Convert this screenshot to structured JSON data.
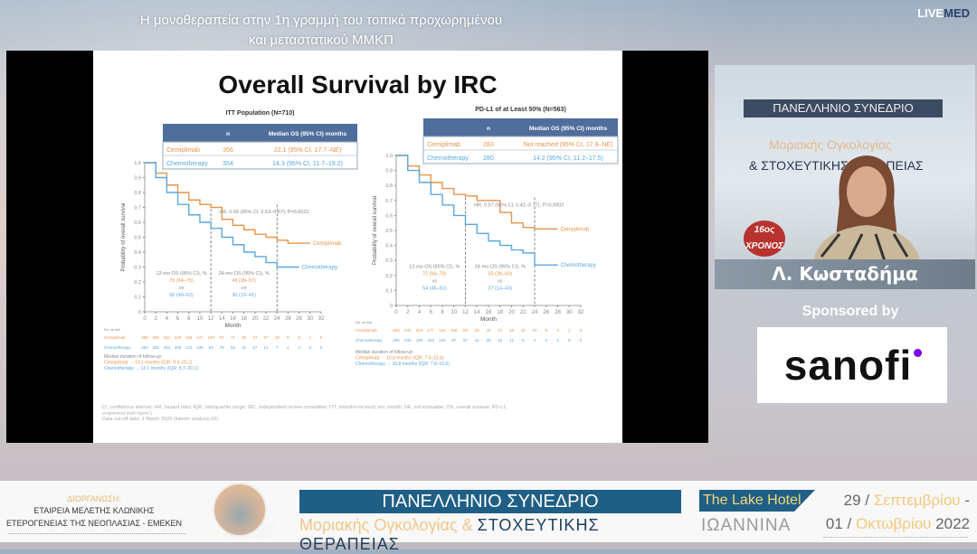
{
  "header": {
    "title_line1": "Η μονοθεραπεία στην 1η γραμμή του τοπικά προχωρημένου",
    "title_line2": "και μεταστατικού ΜΜΚΠ",
    "brand_live": "LIVE",
    "brand_med": "MED"
  },
  "slide": {
    "title": "Overall Survival by IRC",
    "footnote": [
      "CI, confidence interval; HR, hazard ratio; IQR, interquartile range; IRC, independent review committee; ITT, intention-to-treat; mo, month; NE, not evaluable; OS, overall survival; PD-L1,",
      "programmed death-ligand 1.",
      "Data cut-off date: 1 March 2020 (interim analysis #2)."
    ]
  },
  "chart_data": [
    {
      "type": "line",
      "title": "ITT Population (N=710)",
      "xlabel": "Month",
      "ylabel": "Probability of overall survival",
      "xlim": [
        0,
        32
      ],
      "ylim": [
        0,
        1
      ],
      "xticks": [
        0,
        2,
        4,
        6,
        8,
        10,
        12,
        14,
        16,
        18,
        20,
        22,
        24,
        26,
        28,
        30,
        32
      ],
      "yticks": [
        "0",
        "0.1",
        "0.2",
        "0.3",
        "0.4",
        "0.5",
        "0.6",
        "0.7",
        "0.8",
        "0.9",
        "1.0"
      ],
      "table": {
        "headers": [
          "",
          "n",
          "Median OS (95% CI) months"
        ],
        "rows": [
          [
            "Cemiplimab",
            "356",
            "22.1 (95% CI, 17.7–NE)"
          ],
          [
            "Chemotherapy",
            "354",
            "14.3 (95% CI, 11.7–19.2)"
          ]
        ]
      },
      "hr": "HR, 0.68 (95% CI, 0.53–0.87); P=0.0022",
      "landmarks": [
        {
          "title": "12-mo OS (95% CI), %",
          "a": "70 (64–75)",
          "vs": "vs",
          "b": "56 (49–62)",
          "month": 12
        },
        {
          "title": "24-mo OS (95% CI), %",
          "a": "49 (39–57)",
          "vs": "vs",
          "b": "30 (19–41)",
          "month": 24
        }
      ],
      "series": [
        {
          "name": "Cemiplimab",
          "color": "#e8944a",
          "x": [
            0,
            2,
            4,
            6,
            8,
            10,
            12,
            14,
            16,
            18,
            20,
            22,
            24,
            26,
            28,
            30
          ],
          "y": [
            1,
            0.93,
            0.85,
            0.8,
            0.75,
            0.72,
            0.7,
            0.62,
            0.58,
            0.55,
            0.52,
            0.5,
            0.48,
            0.46,
            0.46,
            0.46
          ]
        },
        {
          "name": "Chemotherapy",
          "color": "#5aa8e0",
          "x": [
            0,
            2,
            4,
            6,
            8,
            10,
            12,
            14,
            16,
            18,
            20,
            22,
            24,
            26,
            28
          ],
          "y": [
            1,
            0.9,
            0.8,
            0.72,
            0.65,
            0.6,
            0.56,
            0.5,
            0.45,
            0.4,
            0.37,
            0.33,
            0.3,
            0.3,
            0.3
          ]
        }
      ],
      "at_risk": {
        "label": "No. at risk",
        "rows": [
          {
            "name": "Cemiplimab",
            "values": [
              "356",
              "304",
              "264",
              "223",
              "156",
              "147",
              "120",
              "97",
              "71",
              "48",
              "37",
              "27",
              "18",
              "8",
              "5",
              "1",
              "0"
            ]
          },
          {
            "name": "Chemotherapy",
            "values": [
              "354",
              "303",
              "254",
              "205",
              "172",
              "136",
              "93",
              "75",
              "52",
              "41",
              "27",
              "12",
              "7",
              "4",
              "3",
              "0",
              "0"
            ]
          }
        ]
      },
      "follow_up": [
        "Median duration of follow-up:",
        "Cemiplimab → 13.1 months (IQR: 8.6–20.2)",
        "Chemotherapy → 13.1 months (IQR: 8.7–20.1)"
      ]
    },
    {
      "type": "line",
      "title": "PD-L1 of at Least 50% (N=563)",
      "xlabel": "Month",
      "ylabel": "Probability of overall survival",
      "xlim": [
        0,
        32
      ],
      "ylim": [
        0,
        1
      ],
      "xticks": [
        0,
        2,
        4,
        6,
        8,
        10,
        12,
        14,
        16,
        18,
        20,
        22,
        24,
        26,
        28,
        30,
        32
      ],
      "yticks": [
        "0",
        "0.1",
        "0.2",
        "0.3",
        "0.4",
        "0.5",
        "0.6",
        "0.7",
        "0.8",
        "0.9",
        "1.0"
      ],
      "table": {
        "headers": [
          "",
          "n",
          "Median OS (95% CI) months"
        ],
        "rows": [
          [
            "Cemiplimab",
            "283",
            "Not reached (95% CI, 17.9–NE)"
          ],
          [
            "Chemotherapy",
            "280",
            "14.2 (95% CI, 11.2–17.5)"
          ]
        ]
      },
      "hr": "HR, 0.57 (95% CI, 0.42–0.77); P=0.0002",
      "landmarks": [
        {
          "title": "12-mo OS (95% CI), %",
          "a": "72 (66–78)",
          "vs": "vs",
          "b": "54 (46–61)",
          "month": 12
        },
        {
          "title": "24-mo OS (95% CI), %",
          "a": "50 (36–63)",
          "vs": "vs",
          "b": "27 (14–43)",
          "month": 24
        }
      ],
      "series": [
        {
          "name": "Cemiplimab",
          "color": "#e8944a",
          "x": [
            0,
            2,
            4,
            6,
            8,
            10,
            12,
            14,
            16,
            18,
            20,
            22,
            24,
            26,
            28
          ],
          "y": [
            1,
            0.93,
            0.87,
            0.82,
            0.78,
            0.74,
            0.73,
            0.7,
            0.7,
            0.62,
            0.55,
            0.52,
            0.51,
            0.51,
            0.51
          ]
        },
        {
          "name": "Chemotherapy",
          "color": "#5aa8e0",
          "x": [
            0,
            2,
            4,
            6,
            8,
            10,
            12,
            14,
            16,
            18,
            20,
            22,
            24,
            26,
            28
          ],
          "y": [
            1,
            0.9,
            0.82,
            0.74,
            0.67,
            0.6,
            0.54,
            0.48,
            0.43,
            0.4,
            0.37,
            0.35,
            0.27,
            0.27,
            0.27
          ]
        }
      ],
      "at_risk": {
        "label": "No. at risk",
        "rows": [
          {
            "name": "Cemiplimab",
            "values": [
              "283",
              "244",
              "203",
              "177",
              "154",
              "108",
              "83",
              "55",
              "42",
              "24",
              "16",
              "15",
              "10",
              "6",
              "3",
              "1",
              "0"
            ]
          },
          {
            "name": "Chemotherapy",
            "values": [
              "280",
              "239",
              "196",
              "153",
              "120",
              "87",
              "57",
              "41",
              "25",
              "15",
              "11",
              "6",
              "4",
              "2",
              "1",
              "0",
              "0"
            ]
          }
        ]
      },
      "follow_up": [
        "Median duration of follow-up:",
        "Cemiplimab → 10.8 months (IQR: 7.6–15.8)",
        "Chemotherapy → 10.8 months (IQR: 7.8–15.6)"
      ]
    }
  ],
  "speaker": {
    "banner": "ΠΑΝΕΛΛΗΝΙΟ ΣΥΝΕΔΡΙΟ",
    "sub1": "Μοριακής Ογκολογίας",
    "sub2": "& ΣΤΟΧΕΥΤΙΚΗΣ ΘΕΡΑΠΕΙΑΣ",
    "seal": "16ος ΧΡΟΝΟΣ",
    "name": "Λ. Κωσταδήμα"
  },
  "sponsor": {
    "label": "Sponsored by",
    "name": "sanofi",
    "accent": "#7a00e6"
  },
  "footer": {
    "org_label": "ΔΙΟΡΓΑΝΩΣΗ:",
    "org_line1": "ΕΤΑΙΡΕΙΑ ΜΕΛΕΤΗΣ  ΚΛΩΝΙΚΗΣ",
    "org_line2": "ΕΤΕΡΟΓΕΝΕΙΑΣ ΤΗΣ ΝΕΟΠΛΑΣΙΑΣ - ΕΜΕΚΕΝ",
    "congress": "ΠΑΝΕΛΛΗΝΙΟ ΣΥΝΕΔΡΙΟ",
    "sub_a": "Μοριακής Ογκολογίας & ",
    "sub_b": "ΣΤΟΧΕΥΤΙΚΗΣ ΘΕΡΑΠΕΙΑΣ",
    "hotel": "The Lake Hotel",
    "city": "ΙΩΑΝΝΙΝΑ",
    "d1_day": "29 / ",
    "d1_month": "Σεπτεμβρίου",
    "d1_end": " -",
    "d2_day": "01 / ",
    "d2_month": "Οκτωβρίου",
    "d2_year": " 2022"
  }
}
